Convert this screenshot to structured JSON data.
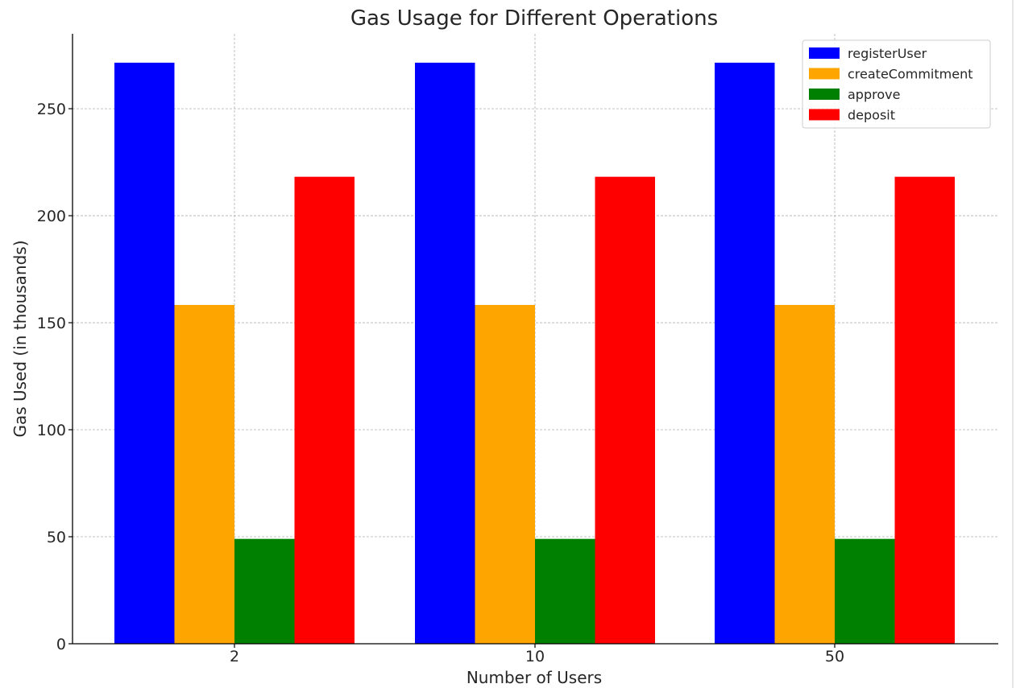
{
  "chart_data": {
    "type": "bar",
    "title": "Gas Usage for Different Operations",
    "xlabel": "Number of Users",
    "ylabel": "Gas Used (in thousands)",
    "categories": [
      "2",
      "10",
      "50"
    ],
    "series": [
      {
        "name": "registerUser",
        "color": "#0000ff",
        "values": [
          271.5,
          271.5,
          271.5
        ]
      },
      {
        "name": "createCommitment",
        "color": "#ffa500",
        "values": [
          158.3,
          158.3,
          158.3
        ]
      },
      {
        "name": "approve",
        "color": "#008000",
        "values": [
          49.0,
          49.0,
          49.0
        ]
      },
      {
        "name": "deposit",
        "color": "#ff0000",
        "values": [
          218.2,
          218.2,
          218.2
        ]
      }
    ],
    "ylim": [
      0,
      285
    ],
    "yticks": [
      0,
      50,
      100,
      150,
      200,
      250
    ],
    "grid": true,
    "legend_position": "top-right"
  }
}
